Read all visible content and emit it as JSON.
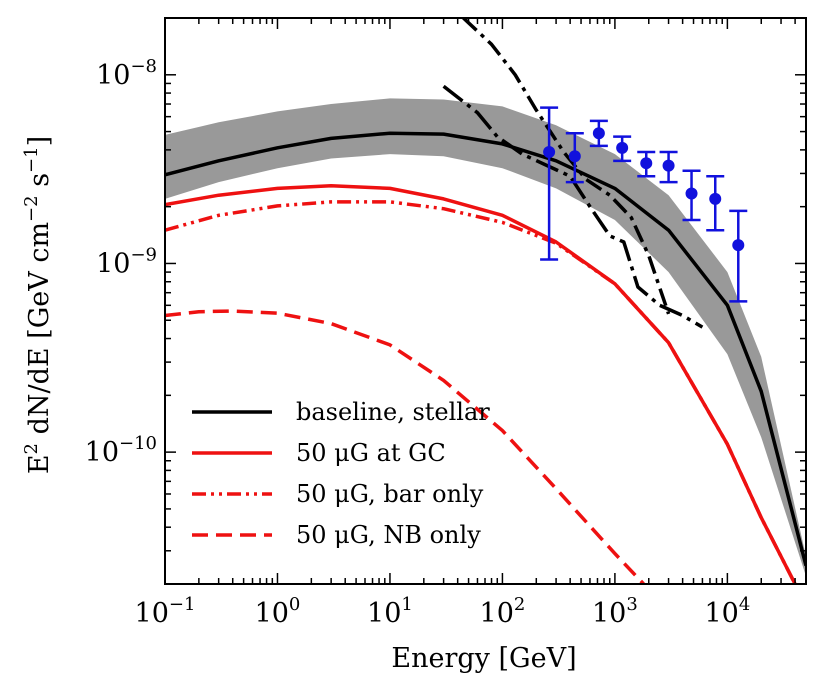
{
  "chart_data": {
    "type": "line",
    "xscale": "log",
    "yscale": "log",
    "xlim": [
      0.1,
      50000
    ],
    "ylim": [
      2e-11,
      2e-08
    ],
    "xlabel": "Energy [GeV]",
    "ylabel_parts": {
      "e": "E",
      "e_exp": "2",
      "mid": " dN/dE [GeV cm",
      "cm_exp": "−2",
      "s": " s",
      "s_exp": "−1",
      "end": "]"
    },
    "xticks": [
      {
        "value": 0.1,
        "base": "10",
        "exp": "−1"
      },
      {
        "value": 1,
        "base": "10",
        "exp": "0"
      },
      {
        "value": 10,
        "base": "10",
        "exp": "1"
      },
      {
        "value": 100,
        "base": "10",
        "exp": "2"
      },
      {
        "value": 1000,
        "base": "10",
        "exp": "3"
      },
      {
        "value": 10000,
        "base": "10",
        "exp": "4"
      }
    ],
    "yticks": [
      {
        "value": 1e-10,
        "base": "10",
        "exp": "−10"
      },
      {
        "value": 1e-09,
        "base": "10",
        "exp": "−9"
      },
      {
        "value": 1e-08,
        "base": "10",
        "exp": "−8"
      }
    ],
    "colors": {
      "black": "#000000",
      "red": "#ee1111",
      "band": "#999999",
      "blue": "#1111dd"
    },
    "band": {
      "x": [
        0.1,
        0.3,
        1,
        3,
        10,
        30,
        100,
        300,
        1000,
        3000,
        10000,
        20000,
        50000
      ],
      "lower": [
        2.2e-09,
        2.7e-09,
        3.2e-09,
        3.6e-09,
        3.8e-09,
        3.7e-09,
        3.2e-09,
        2.5e-09,
        1.7e-09,
        9e-10,
        3.3e-10,
        1.2e-10,
        2.2e-11
      ],
      "upper": [
        4.8e-09,
        5.6e-09,
        6.4e-09,
        7e-09,
        7.5e-09,
        7.4e-09,
        6.8e-09,
        5.4e-09,
        3.8e-09,
        2.3e-09,
        9e-10,
        3.2e-10,
        2.8e-11
      ]
    },
    "series": [
      {
        "name": "baseline, stellar",
        "style": "solid",
        "color": "black",
        "x": [
          0.1,
          0.3,
          1,
          3,
          10,
          30,
          100,
          300,
          1000,
          3000,
          10000,
          20000,
          50000
        ],
        "y": [
          2.95e-09,
          3.5e-09,
          4.1e-09,
          4.6e-09,
          4.9e-09,
          4.85e-09,
          4.3e-09,
          3.5e-09,
          2.5e-09,
          1.5e-09,
          6e-10,
          2.1e-10,
          2.5e-11
        ]
      },
      {
        "name": "50 μG at GC",
        "style": "solid",
        "color": "red",
        "x": [
          0.1,
          0.3,
          1,
          3,
          10,
          30,
          100,
          300,
          1000,
          3000,
          10000,
          20000,
          40000
        ],
        "y": [
          2.05e-09,
          2.3e-09,
          2.5e-09,
          2.58e-09,
          2.5e-09,
          2.2e-09,
          1.8e-09,
          1.3e-09,
          7.8e-10,
          3.8e-10,
          1.1e-10,
          4.5e-11,
          2e-11
        ]
      },
      {
        "name": "50 μG, bar only",
        "style": "dashdotdot",
        "color": "red",
        "x": [
          0.1,
          0.3,
          1,
          3,
          10,
          30,
          100,
          300,
          1000,
          3000,
          10000,
          20000,
          40000
        ],
        "y": [
          1.5e-09,
          1.8e-09,
          2.02e-09,
          2.12e-09,
          2.12e-09,
          1.95e-09,
          1.65e-09,
          1.28e-09,
          7.8e-10,
          3.8e-10,
          1.1e-10,
          4.5e-11,
          2e-11
        ]
      },
      {
        "name": "50 μG, NB only",
        "style": "dashed",
        "color": "red",
        "x": [
          0.1,
          0.2,
          0.4,
          1,
          3,
          10,
          30,
          100,
          300,
          1000,
          1800
        ],
        "y": [
          5.3e-10,
          5.55e-10,
          5.6e-10,
          5.45e-10,
          4.8e-10,
          3.7e-10,
          2.4e-10,
          1.3e-10,
          6.4e-11,
          2.9e-11,
          2e-11
        ]
      },
      {
        "name": "",
        "style": "longdashdot",
        "color": "black",
        "x": [
          30,
          60,
          90,
          150,
          250,
          400,
          600,
          900,
          1200,
          1600,
          2500,
          4000,
          6000
        ],
        "y": [
          8.7e-09,
          6.3e-09,
          4.7e-09,
          3.8e-09,
          3.3e-09,
          2.9e-09,
          2e-09,
          1.4e-09,
          1.3e-09,
          7.5e-10,
          6e-10,
          5.3e-10,
          4.6e-10
        ]
      },
      {
        "name": "",
        "style": "dashdot",
        "color": "black",
        "x": [
          45,
          80,
          130,
          200,
          350,
          550,
          900,
          1400,
          2000,
          3000
        ],
        "y": [
          2e-08,
          1.45e-08,
          1e-08,
          6.5e-09,
          3.9e-09,
          2.8e-09,
          2.3e-09,
          1.75e-09,
          1.1e-09,
          5.4e-10
        ]
      }
    ],
    "points": {
      "name": "data",
      "color": "blue",
      "x": [
        260,
        440,
        720,
        1160,
        1900,
        3000,
        4800,
        7800,
        12500
      ],
      "y": [
        3.9e-09,
        3.7e-09,
        4.9e-09,
        4.1e-09,
        3.4e-09,
        3.3e-09,
        2.35e-09,
        2.2e-09,
        1.25e-09
      ],
      "ylow": [
        1.05e-09,
        2.7e-09,
        4.2e-09,
        3.5e-09,
        2.9e-09,
        2.7e-09,
        1.7e-09,
        1.5e-09,
        6.3e-10
      ],
      "yhigh": [
        6.7e-09,
        4.9e-09,
        5.7e-09,
        4.7e-09,
        3.9e-09,
        3.9e-09,
        3.1e-09,
        2.9e-09,
        1.9e-09
      ]
    },
    "legend": {
      "position": "lower-left",
      "entries": [
        {
          "label": "baseline, stellar",
          "style": "solid",
          "color": "black"
        },
        {
          "label": "50 μG at GC",
          "style": "solid",
          "color": "red"
        },
        {
          "label": "50 μG, bar only",
          "style": "dashdotdot",
          "color": "red"
        },
        {
          "label": "50 μG, NB only",
          "style": "dashed",
          "color": "red"
        }
      ]
    }
  }
}
